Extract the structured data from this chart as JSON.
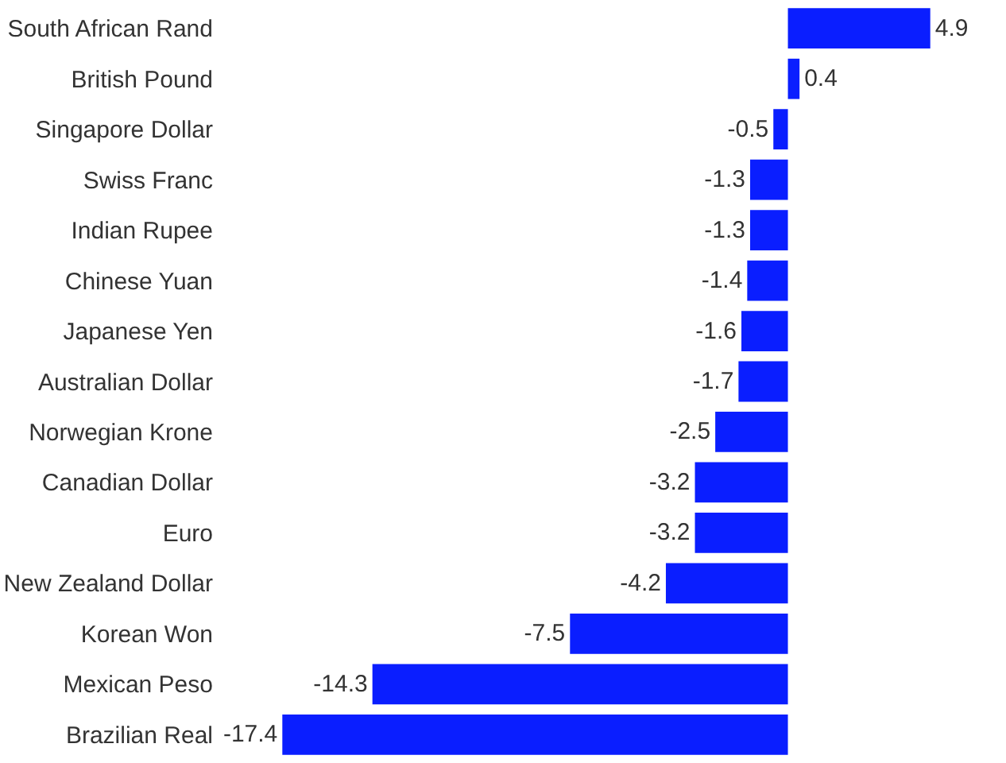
{
  "chart_data": {
    "type": "bar",
    "orientation": "horizontal",
    "categories": [
      "South African Rand",
      "British Pound",
      "Singapore Dollar",
      "Swiss Franc",
      "Indian Rupee",
      "Chinese Yuan",
      "Japanese Yen",
      "Australian Dollar",
      "Norwegian Krone",
      "Canadian Dollar",
      "Euro",
      "New Zealand Dollar",
      "Korean Won",
      "Mexican Peso",
      "Brazilian Real"
    ],
    "values": [
      4.9,
      0.4,
      -0.5,
      -1.3,
      -1.3,
      -1.4,
      -1.6,
      -1.7,
      -2.5,
      -3.2,
      -3.2,
      -4.2,
      -7.5,
      -14.3,
      -17.4
    ],
    "color": "#0a1eff",
    "tick_labels": "y",
    "data_labels": true
  }
}
